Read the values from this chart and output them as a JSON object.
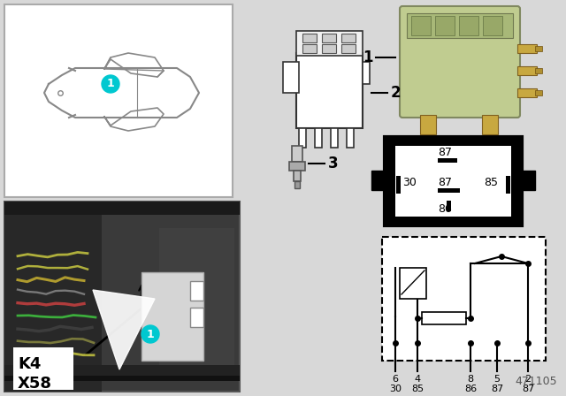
{
  "bg_color": "#d8d8d8",
  "white": "#ffffff",
  "black": "#000000",
  "cyan_color": "#00c8d0",
  "relay_green": "#b5c98e",
  "diagram_num": "471105",
  "car_box_bg": "#ffffff",
  "pin_box_bg": "#000000",
  "schematic_bg": "#ffffff",
  "photo_bg": "#555555"
}
